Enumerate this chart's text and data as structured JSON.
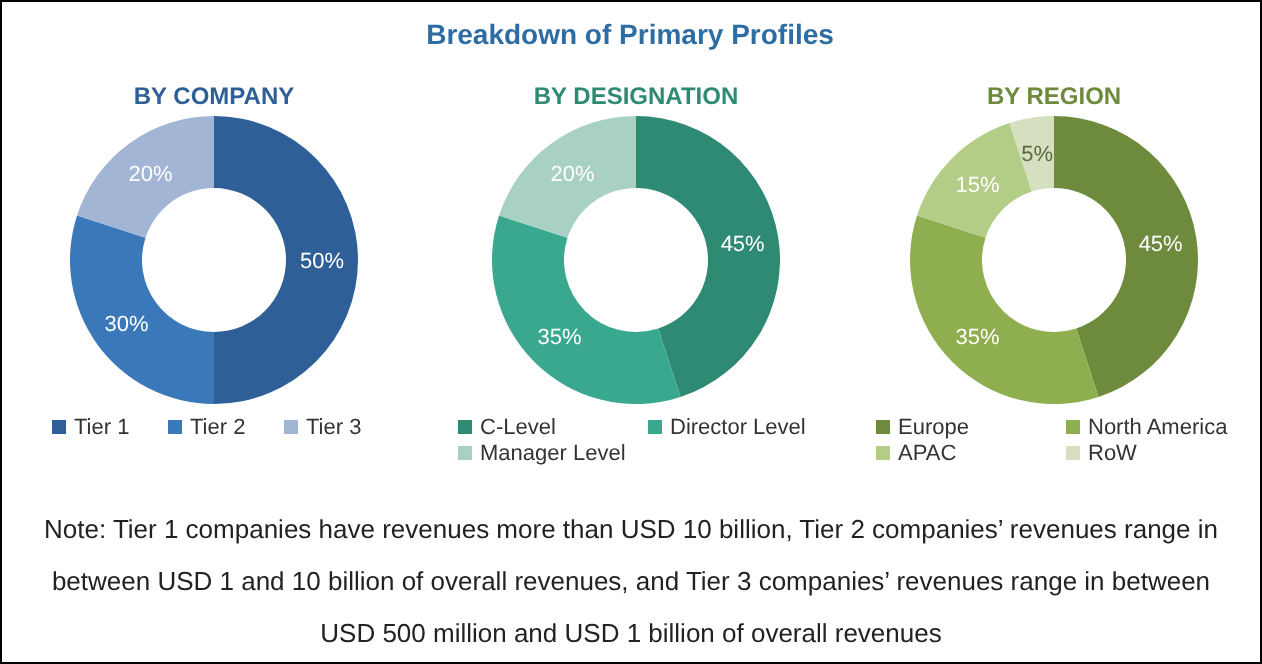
{
  "chart_data": [
    {
      "type": "other",
      "title": "Breakdown of Primary Profiles",
      "annotations": [
        "Note: Tier 1 companies have revenues more than USD 10 billion, Tier 2 companies’ revenues range in between USD 1 and 10 billion of overall revenues, and Tier 3 companies’ revenues range in between USD 500 million and USD 1 billion of overall revenues"
      ]
    },
    {
      "type": "donut",
      "title": "BY COMPANY",
      "categories": [
        "Tier 1",
        "Tier 2",
        "Tier 3"
      ],
      "values": [
        50,
        30,
        20
      ],
      "colors": [
        "#2e5f97",
        "#3a78b9",
        "#a3b5d4"
      ],
      "value_labels": [
        "50%",
        "30%",
        "20%"
      ],
      "legend": "bottom"
    },
    {
      "type": "donut",
      "title": "BY DESIGNATION",
      "categories": [
        "C-Level",
        "Director Level",
        "Manager Level"
      ],
      "values": [
        45,
        35,
        20
      ],
      "colors": [
        "#2e8a73",
        "#3aa88e",
        "#a8d1c3"
      ],
      "value_labels": [
        "45%",
        "35%",
        "20%"
      ],
      "legend": "bottom"
    },
    {
      "type": "donut",
      "title": "BY REGION",
      "categories": [
        "Europe",
        "North America",
        "APAC",
        "RoW"
      ],
      "values": [
        45,
        35,
        15,
        5
      ],
      "colors": [
        "#6e8b3d",
        "#8fae4f",
        "#b3cc86",
        "#d6e0c0"
      ],
      "value_labels": [
        "45%",
        "35%",
        "15%",
        "5%"
      ],
      "legend": "bottom"
    }
  ]
}
